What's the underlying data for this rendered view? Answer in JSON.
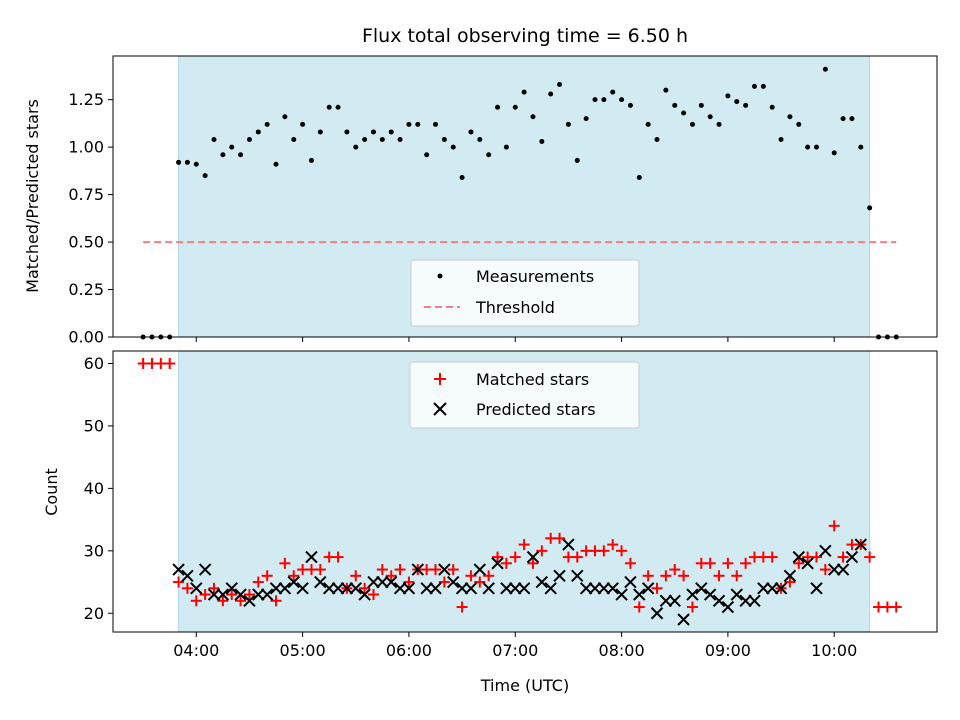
{
  "chart_data": [
    {
      "type": "scatter",
      "title": "Flux total observing time = 6.50 h",
      "ylabel": "Matched/Predicted stars",
      "xlabel": "",
      "xlim": [
        "03:13",
        "10:58"
      ],
      "ylim": [
        0,
        1.48
      ],
      "yticks": [
        0,
        0.25,
        0.5,
        0.75,
        1.0,
        1.25
      ],
      "ytick_labels": [
        "0.00",
        "0.25",
        "0.50",
        "0.75",
        "1.00",
        "1.25"
      ],
      "xticks": [
        "04:00",
        "05:00",
        "06:00",
        "07:00",
        "08:00",
        "09:00",
        "10:00"
      ],
      "shaded_span": [
        "03:50",
        "10:20"
      ],
      "shade_color": "#add8e6",
      "legend": {
        "placement": "lower center",
        "entries": [
          "Measurements",
          "Threshold"
        ]
      },
      "series": [
        {
          "name": "Measurements",
          "marker": "dot",
          "color": "#000000",
          "x": [
            "03:30",
            "03:35",
            "03:40",
            "03:45",
            "03:50",
            "03:55",
            "04:00",
            "04:05",
            "04:10",
            "04:15",
            "04:20",
            "04:25",
            "04:30",
            "04:35",
            "04:40",
            "04:45",
            "04:50",
            "04:55",
            "05:00",
            "05:05",
            "05:10",
            "05:15",
            "05:20",
            "05:25",
            "05:30",
            "05:35",
            "05:40",
            "05:45",
            "05:50",
            "05:55",
            "06:00",
            "06:05",
            "06:10",
            "06:15",
            "06:20",
            "06:25",
            "06:30",
            "06:35",
            "06:40",
            "06:45",
            "06:50",
            "06:55",
            "07:00",
            "07:05",
            "07:10",
            "07:15",
            "07:20",
            "07:25",
            "07:30",
            "07:35",
            "07:40",
            "07:45",
            "07:50",
            "07:55",
            "08:00",
            "08:05",
            "08:10",
            "08:15",
            "08:20",
            "08:25",
            "08:30",
            "08:35",
            "08:40",
            "08:45",
            "08:50",
            "08:55",
            "09:00",
            "09:05",
            "09:10",
            "09:15",
            "09:20",
            "09:25",
            "09:30",
            "09:35",
            "09:40",
            "09:45",
            "09:50",
            "09:55",
            "10:00",
            "10:05",
            "10:10",
            "10:15",
            "10:20",
            "10:25",
            "10:30",
            "10:35"
          ],
          "y": [
            0,
            0,
            0,
            0,
            0.92,
            0.92,
            0.91,
            0.85,
            1.04,
            0.96,
            1.0,
            0.96,
            1.04,
            1.08,
            1.12,
            0.91,
            1.16,
            1.04,
            1.12,
            0.93,
            1.08,
            1.21,
            1.21,
            1.08,
            1.0,
            1.04,
            1.08,
            1.04,
            1.08,
            1.04,
            1.12,
            1.12,
            0.96,
            1.12,
            1.04,
            1.0,
            0.84,
            1.08,
            1.04,
            0.96,
            1.21,
            1.0,
            1.21,
            1.29,
            1.16,
            1.03,
            1.28,
            1.33,
            1.12,
            0.93,
            1.15,
            1.25,
            1.25,
            1.29,
            1.25,
            1.22,
            0.84,
            1.12,
            1.04,
            1.3,
            1.22,
            1.18,
            1.12,
            1.22,
            1.16,
            1.12,
            1.27,
            1.24,
            1.22,
            1.32,
            1.32,
            1.21,
            1.04,
            1.16,
            1.12,
            1.0,
            1.0,
            1.41,
            0.97,
            1.15,
            1.15,
            1.0,
            0.68,
            0,
            0,
            0
          ]
        },
        {
          "name": "Threshold",
          "marker": "dashed-line",
          "color": "#f08080",
          "x": [
            "03:30",
            "10:35"
          ],
          "y": [
            0.5,
            0.5
          ]
        }
      ]
    },
    {
      "type": "scatter",
      "title": "",
      "ylabel": "Count",
      "xlabel": "Time (UTC)",
      "xlim": [
        "03:13",
        "10:58"
      ],
      "ylim": [
        17,
        62
      ],
      "yticks": [
        20,
        30,
        40,
        50,
        60
      ],
      "ytick_labels": [
        "20",
        "30",
        "40",
        "50",
        "60"
      ],
      "xticks": [
        "04:00",
        "05:00",
        "06:00",
        "07:00",
        "08:00",
        "09:00",
        "10:00"
      ],
      "xtick_labels": [
        "04:00",
        "05:00",
        "06:00",
        "07:00",
        "08:00",
        "09:00",
        "10:00"
      ],
      "shaded_span": [
        "03:50",
        "10:20"
      ],
      "shade_color": "#add8e6",
      "legend": {
        "placement": "upper center",
        "entries": [
          "Matched stars",
          "Predicted stars"
        ]
      },
      "series": [
        {
          "name": "Matched stars",
          "marker": "plus",
          "color": "#ff0000",
          "x": [
            "03:30",
            "03:35",
            "03:40",
            "03:45",
            "03:50",
            "03:55",
            "04:00",
            "04:05",
            "04:10",
            "04:15",
            "04:20",
            "04:25",
            "04:30",
            "04:35",
            "04:40",
            "04:45",
            "04:50",
            "04:55",
            "05:00",
            "05:05",
            "05:10",
            "05:15",
            "05:20",
            "05:25",
            "05:30",
            "05:35",
            "05:40",
            "05:45",
            "05:50",
            "05:55",
            "06:00",
            "06:05",
            "06:10",
            "06:15",
            "06:20",
            "06:25",
            "06:30",
            "06:35",
            "06:40",
            "06:45",
            "06:50",
            "06:55",
            "07:00",
            "07:05",
            "07:10",
            "07:15",
            "07:20",
            "07:25",
            "07:30",
            "07:35",
            "07:40",
            "07:45",
            "07:50",
            "07:55",
            "08:00",
            "08:05",
            "08:10",
            "08:15",
            "08:20",
            "08:25",
            "08:30",
            "08:35",
            "08:40",
            "08:45",
            "08:50",
            "08:55",
            "09:00",
            "09:05",
            "09:10",
            "09:15",
            "09:20",
            "09:25",
            "09:30",
            "09:35",
            "09:40",
            "09:45",
            "09:50",
            "09:55",
            "10:00",
            "10:05",
            "10:10",
            "10:15",
            "10:20",
            "10:25",
            "10:30",
            "10:35"
          ],
          "y": [
            60,
            60,
            60,
            60,
            25,
            24,
            22,
            23,
            24,
            22,
            23,
            22,
            23,
            25,
            26,
            22,
            28,
            26,
            27,
            27,
            27,
            29,
            29,
            24,
            26,
            24,
            23,
            27,
            26,
            27,
            25,
            27,
            27,
            27,
            25,
            27,
            21,
            26,
            25,
            26,
            29,
            28,
            29,
            31,
            28,
            30,
            32,
            32,
            29,
            29,
            30,
            30,
            30,
            31,
            30,
            28,
            21,
            26,
            24,
            26,
            27,
            26,
            21,
            28,
            28,
            26,
            28,
            26,
            28,
            29,
            29,
            29,
            24,
            25,
            28,
            29,
            29,
            27,
            34,
            29,
            31,
            31,
            29,
            21,
            21,
            21
          ]
        },
        {
          "name": "Predicted stars",
          "marker": "x",
          "color": "#000000",
          "x": [
            "03:50",
            "03:55",
            "04:00",
            "04:05",
            "04:10",
            "04:15",
            "04:20",
            "04:25",
            "04:30",
            "04:35",
            "04:40",
            "04:45",
            "04:50",
            "04:55",
            "05:00",
            "05:05",
            "05:10",
            "05:15",
            "05:20",
            "05:25",
            "05:30",
            "05:35",
            "05:40",
            "05:45",
            "05:50",
            "05:55",
            "06:00",
            "06:05",
            "06:10",
            "06:15",
            "06:20",
            "06:25",
            "06:30",
            "06:35",
            "06:40",
            "06:45",
            "06:50",
            "06:55",
            "07:00",
            "07:05",
            "07:10",
            "07:15",
            "07:20",
            "07:25",
            "07:30",
            "07:35",
            "07:40",
            "07:45",
            "07:50",
            "07:55",
            "08:00",
            "08:05",
            "08:10",
            "08:15",
            "08:20",
            "08:25",
            "08:30",
            "08:35",
            "08:40",
            "08:45",
            "08:50",
            "08:55",
            "09:00",
            "09:05",
            "09:10",
            "09:15",
            "09:20",
            "09:25",
            "09:30",
            "09:35",
            "09:40",
            "09:45",
            "09:50",
            "09:55",
            "10:00",
            "10:05",
            "10:10",
            "10:15",
            "10:20"
          ],
          "y": [
            27,
            26,
            24,
            27,
            23,
            23,
            24,
            23,
            22,
            23,
            23,
            24,
            24,
            25,
            24,
            29,
            25,
            24,
            24,
            24,
            24,
            23,
            25,
            25,
            25,
            24,
            24,
            27,
            24,
            24,
            27,
            25,
            24,
            24,
            27,
            24,
            28,
            24,
            24,
            24,
            29,
            25,
            24,
            26,
            31,
            26,
            24,
            24,
            24,
            24,
            23,
            25,
            23,
            24,
            20,
            22,
            22,
            19,
            23,
            24,
            23,
            22,
            21,
            23,
            22,
            22,
            24,
            24,
            24,
            26,
            29,
            28,
            24,
            30,
            27,
            27,
            29,
            31,
            null
          ]
        }
      ]
    }
  ]
}
